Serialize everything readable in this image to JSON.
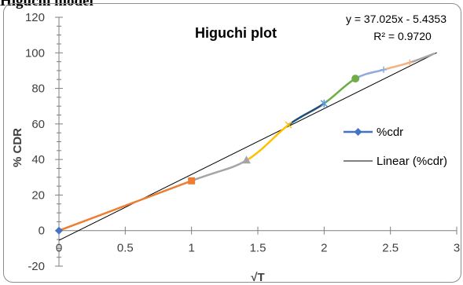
{
  "heading": "Higuchi model",
  "chart_data": {
    "type": "scatter",
    "title": "Higuchi plot",
    "xlabel": "√T",
    "ylabel": "% CDR",
    "xlim": [
      0,
      3
    ],
    "ylim": [
      -20,
      120
    ],
    "x_ticks": [
      "0",
      "0.5",
      "1",
      "1.5",
      "2",
      "2.5",
      "3"
    ],
    "y_ticks": [
      "-20",
      "0",
      "20",
      "40",
      "60",
      "80",
      "100",
      "120"
    ],
    "grid": false,
    "series": [
      {
        "name": "%cdr",
        "x": [
          0,
          1,
          1.414,
          1.732,
          2,
          2.236,
          2.449,
          2.646,
          2.828
        ],
        "y": [
          0,
          28,
          39.5,
          59.5,
          71.5,
          85.5,
          90.5,
          94.5,
          99.5
        ]
      }
    ],
    "segment_colors": [
      "#ed7d31",
      "#a5a5a5",
      "#ffc000",
      "#1f4e79",
      "#70ad47",
      "#8faadc",
      "#f4b183",
      "#a5a5a5"
    ],
    "marker_colors": [
      "#4472c4",
      "#ed7d31",
      "#a5a5a5",
      "#ffc000",
      "#5b9bd5",
      "#70ad47",
      "#8faadc",
      "#f4b183",
      "#a5a5a5"
    ],
    "trendline": {
      "name": "Linear (%cdr)",
      "slope": 37.025,
      "intercept": -5.4353,
      "x_range": [
        0,
        2.85
      ],
      "color": "#000000"
    },
    "equation": "y = 37.025x - 5.4353",
    "r_squared": "R² = 0.9720",
    "legend": [
      "%cdr",
      "Linear (%cdr)"
    ],
    "legend_position": "right",
    "legend_marker_color": "#4472c4"
  }
}
